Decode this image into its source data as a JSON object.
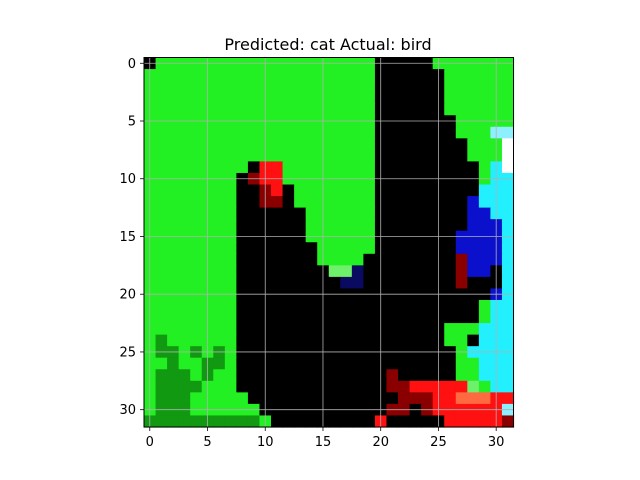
{
  "chart_data": {
    "type": "heatmap",
    "title": "Predicted: cat Actual: bird",
    "xlabel": "",
    "ylabel": "",
    "xlim": [
      -0.5,
      31.5
    ],
    "ylim": [
      31.5,
      -0.5
    ],
    "x_ticks": [
      0,
      5,
      10,
      15,
      20,
      25,
      30
    ],
    "y_ticks": [
      0,
      5,
      10,
      15,
      20,
      25,
      30
    ],
    "grid": true,
    "image_size": [
      32,
      32
    ],
    "palette": {
      "K": "#000000",
      "G": "#22f022",
      "g": "#6ff06a",
      "D": "#119911",
      "R": "#ff1111",
      "r": "#8a0000",
      "B": "#0a10cc",
      "b": "#0a0a60",
      "C": "#22f0ff",
      "c": "#8ef0ff",
      "W": "#ffffff",
      "O": "#ff6a40"
    },
    "pixels": [
      "KGGGGGGGGGGGGGGGGGGGKKKKKGGGGGGG",
      "GGGGGGGGGGGGGGGGGGGGKKKKKKGGGGGG",
      "GGGGGGGGGGGGGGGGGGGGKKKKKKGGGGGG",
      "GGGGGGGGGGGGGGGGGGGGKKKKKKGGGGGG",
      "GGGGGGGGGGGGGGGGGGGGKKKKKKGGGGGG",
      "GGGGGGGGGGGGGGGGGGGGKKKKKKKGGGGG",
      "GGGGGGGGGGGGGGGGGGGGKKKKKKKGGGcc",
      "GGGGGGGGGGGGGGGGGGGGKKKKKKKKGGGW",
      "GGGGGGGGGGGGGGGGGGGGKKKKKKKKGGGW",
      "GGGGGGGGGKRRGGGGGGGGKKKKKKKKKGCW",
      "GGGGGGGGKrRRGGGGGGGGKKKKKKKKKGCC",
      "GGGGGGGGKKrRKGGGGGGGKKKKKKKKKCCC",
      "GGGGGGGGKKrrKGGGGGGGKKKKKKKKBCCC",
      "GGGGGGGGKKKKKKGGGGGGKKKKKKKKBBCC",
      "GGGGGGGGKKKKKKGGGGGGKKKKKKKKBBBC",
      "GGGGGGGGKKKKKKGGGGGGKKKKKKKBBBBC",
      "GGGGGGGGKKKKKKKGGGGGKKKKKKKBBBBC",
      "GGGGGGGGKKKKKKKGGGGKKKKKKKKrBBBC",
      "GGGGGGGGKKKKKKKKggbKKKKKKKKrBBKC",
      "GGGGGGGGKKKKKKKKKbbKKKKKKKKrKKKC",
      "GGGGGGGGKKKKKKKKKKKKKKKKKKKKKKBC",
      "GGGGGGGGKKKKKKKKKKKKKKKKKKKKKGCC",
      "GGGGGGGGKKKKKKKKKKKKKKKKKKKKKGCC",
      "GGGGGGGGKKKKKKKKKKKKKKKKKKGGGCCC",
      "GDGGGGGGKKKKKKKKKKKKKKKKKKGGKCCC",
      "GDDGDGDGKKKKKKKKKKKKKKKKKKKGCCCC",
      "GGDGGDDGKKKKKKKKKKKKKKKKKKKGGCCC",
      "GDDDGDGGKKKKKKKKKKKKKrKKKKKGGCCC",
      "GDDDDGGGKKKKKKKKKKKKKrrRRRRRgGCC",
      "GDDDGGGGGKKKKKKKKKKKKKrrrRROOORR",
      "GDDDGGGGGGKKKKKKKKKKKrrKrRRRRRRc",
      "DDDDDDDDDDGKKKKKKKKKRKKKKKRRRRRr"
    ]
  }
}
